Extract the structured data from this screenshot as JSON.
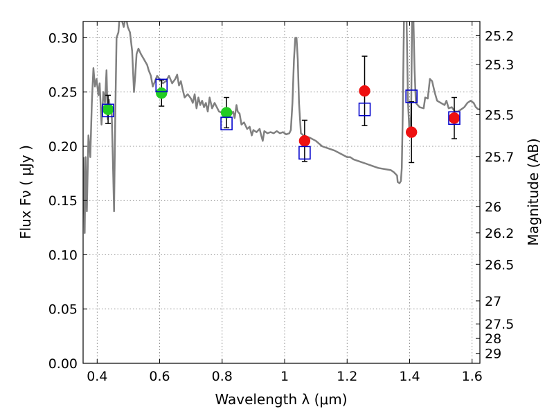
{
  "chart_data": {
    "type": "scatter",
    "title": "",
    "xlabel": "Wavelength  λ (μm)",
    "ylabel": "Flux  Fν  ( μJy )",
    "y2label": "Magnitude (AB)",
    "xlim": [
      0.355,
      1.625
    ],
    "ylim": [
      0.0,
      0.315
    ],
    "grid": true,
    "x_ticks": [
      0.4,
      0.6,
      0.8,
      1.0,
      1.2,
      1.4,
      1.6
    ],
    "x_tick_labels": [
      "0.4",
      "0.6",
      "0.8",
      "1",
      "1.2",
      "1.4",
      "1.6"
    ],
    "y_ticks": [
      0.0,
      0.05,
      0.1,
      0.15,
      0.2,
      0.25,
      0.3
    ],
    "y_tick_labels": [
      "0.00",
      "0.05",
      "0.10",
      "0.15",
      "0.20",
      "0.25",
      "0.30"
    ],
    "mag_ticks": [
      "25.2",
      "25.3",
      "25.5",
      "25.7",
      "26",
      "26.2",
      "26.5",
      "27",
      "27.5",
      "28",
      "29"
    ],
    "colors": {
      "sed": "#808080",
      "optical": "#22cc22",
      "nir": "#ee1111",
      "model": "#0000cc",
      "errorbar": "#000000"
    },
    "series": [
      {
        "marker": "circle",
        "color": "#22cc22",
        "points": [
          {
            "x": 0.435,
            "y": 0.234,
            "err": 0.013
          },
          {
            "x": 0.606,
            "y": 0.249,
            "err": 0.012
          },
          {
            "x": 0.814,
            "y": 0.231,
            "err": 0.014
          }
        ]
      },
      {
        "marker": "circle",
        "color": "#ee1111",
        "points": [
          {
            "x": 1.064,
            "y": 0.205,
            "err": 0.019
          },
          {
            "x": 1.256,
            "y": 0.251,
            "err": 0.032
          },
          {
            "x": 1.406,
            "y": 0.213,
            "err": 0.028
          },
          {
            "x": 1.543,
            "y": 0.226,
            "err": 0.019
          }
        ]
      },
      {
        "marker": "square-open",
        "color": "#0000cc",
        "points": [
          {
            "x": 0.435,
            "y": 0.233
          },
          {
            "x": 0.606,
            "y": 0.256
          },
          {
            "x": 0.814,
            "y": 0.221
          },
          {
            "x": 1.064,
            "y": 0.194
          },
          {
            "x": 1.256,
            "y": 0.234
          },
          {
            "x": 1.406,
            "y": 0.246
          },
          {
            "x": 1.543,
            "y": 0.226
          }
        ]
      }
    ],
    "sed_curve": [
      [
        0.356,
        0.19
      ],
      [
        0.36,
        0.12
      ],
      [
        0.363,
        0.19
      ],
      [
        0.367,
        0.14
      ],
      [
        0.372,
        0.21
      ],
      [
        0.378,
        0.19
      ],
      [
        0.383,
        0.24
      ],
      [
        0.388,
        0.272
      ],
      [
        0.393,
        0.255
      ],
      [
        0.398,
        0.262
      ],
      [
        0.404,
        0.247
      ],
      [
        0.408,
        0.258
      ],
      [
        0.414,
        0.22
      ],
      [
        0.42,
        0.25
      ],
      [
        0.425,
        0.24
      ],
      [
        0.43,
        0.27
      ],
      [
        0.434,
        0.225
      ],
      [
        0.438,
        0.243
      ],
      [
        0.442,
        0.233
      ],
      [
        0.446,
        0.236
      ],
      [
        0.45,
        0.19
      ],
      [
        0.454,
        0.14
      ],
      [
        0.458,
        0.23
      ],
      [
        0.462,
        0.3
      ],
      [
        0.468,
        0.305
      ],
      [
        0.472,
        0.32
      ],
      [
        0.48,
        0.315
      ],
      [
        0.485,
        0.31
      ],
      [
        0.492,
        0.32
      ],
      [
        0.498,
        0.31
      ],
      [
        0.505,
        0.305
      ],
      [
        0.512,
        0.288
      ],
      [
        0.518,
        0.25
      ],
      [
        0.522,
        0.265
      ],
      [
        0.526,
        0.285
      ],
      [
        0.532,
        0.29
      ],
      [
        0.54,
        0.285
      ],
      [
        0.55,
        0.28
      ],
      [
        0.56,
        0.275
      ],
      [
        0.565,
        0.27
      ],
      [
        0.572,
        0.265
      ],
      [
        0.578,
        0.255
      ],
      [
        0.585,
        0.26
      ],
      [
        0.592,
        0.265
      ],
      [
        0.6,
        0.262
      ],
      [
        0.61,
        0.258
      ],
      [
        0.62,
        0.26
      ],
      [
        0.63,
        0.265
      ],
      [
        0.64,
        0.258
      ],
      [
        0.65,
        0.262
      ],
      [
        0.656,
        0.266
      ],
      [
        0.662,
        0.256
      ],
      [
        0.668,
        0.26
      ],
      [
        0.674,
        0.252
      ],
      [
        0.68,
        0.245
      ],
      [
        0.69,
        0.248
      ],
      [
        0.7,
        0.244
      ],
      [
        0.706,
        0.24
      ],
      [
        0.712,
        0.248
      ],
      [
        0.718,
        0.235
      ],
      [
        0.724,
        0.245
      ],
      [
        0.73,
        0.238
      ],
      [
        0.736,
        0.242
      ],
      [
        0.742,
        0.236
      ],
      [
        0.748,
        0.24
      ],
      [
        0.754,
        0.232
      ],
      [
        0.76,
        0.245
      ],
      [
        0.768,
        0.235
      ],
      [
        0.776,
        0.24
      ],
      [
        0.79,
        0.232
      ],
      [
        0.81,
        0.23
      ],
      [
        0.825,
        0.228
      ],
      [
        0.835,
        0.232
      ],
      [
        0.84,
        0.226
      ],
      [
        0.846,
        0.238
      ],
      [
        0.85,
        0.232
      ],
      [
        0.856,
        0.23
      ],
      [
        0.862,
        0.22
      ],
      [
        0.87,
        0.222
      ],
      [
        0.88,
        0.216
      ],
      [
        0.888,
        0.218
      ],
      [
        0.895,
        0.21
      ],
      [
        0.9,
        0.215
      ],
      [
        0.91,
        0.213
      ],
      [
        0.92,
        0.216
      ],
      [
        0.925,
        0.21
      ],
      [
        0.93,
        0.205
      ],
      [
        0.935,
        0.214
      ],
      [
        0.945,
        0.212
      ],
      [
        0.955,
        0.213
      ],
      [
        0.965,
        0.212
      ],
      [
        0.975,
        0.214
      ],
      [
        0.985,
        0.212
      ],
      [
        0.995,
        0.213
      ],
      [
        1.005,
        0.211
      ],
      [
        1.015,
        0.212
      ],
      [
        1.02,
        0.215
      ],
      [
        1.025,
        0.24
      ],
      [
        1.03,
        0.28
      ],
      [
        1.034,
        0.3
      ],
      [
        1.038,
        0.3
      ],
      [
        1.042,
        0.28
      ],
      [
        1.046,
        0.24
      ],
      [
        1.052,
        0.212
      ],
      [
        1.06,
        0.21
      ],
      [
        1.08,
        0.208
      ],
      [
        1.1,
        0.205
      ],
      [
        1.12,
        0.2
      ],
      [
        1.14,
        0.198
      ],
      [
        1.16,
        0.196
      ],
      [
        1.18,
        0.193
      ],
      [
        1.2,
        0.19
      ],
      [
        1.21,
        0.19
      ],
      [
        1.22,
        0.188
      ],
      [
        1.24,
        0.186
      ],
      [
        1.26,
        0.184
      ],
      [
        1.28,
        0.182
      ],
      [
        1.3,
        0.18
      ],
      [
        1.32,
        0.179
      ],
      [
        1.34,
        0.178
      ],
      [
        1.35,
        0.176
      ],
      [
        1.36,
        0.173
      ],
      [
        1.362,
        0.167
      ],
      [
        1.368,
        0.166
      ],
      [
        1.372,
        0.168
      ],
      [
        1.375,
        0.18
      ],
      [
        1.378,
        0.23
      ],
      [
        1.382,
        0.32
      ],
      [
        1.39,
        0.32
      ],
      [
        1.395,
        0.24
      ],
      [
        1.4,
        0.21
      ],
      [
        1.405,
        0.23
      ],
      [
        1.408,
        0.32
      ],
      [
        1.412,
        0.32
      ],
      [
        1.416,
        0.27
      ],
      [
        1.42,
        0.24
      ],
      [
        1.432,
        0.236
      ],
      [
        1.445,
        0.235
      ],
      [
        1.45,
        0.245
      ],
      [
        1.458,
        0.244
      ],
      [
        1.465,
        0.262
      ],
      [
        1.472,
        0.26
      ],
      [
        1.48,
        0.25
      ],
      [
        1.488,
        0.242
      ],
      [
        1.5,
        0.24
      ],
      [
        1.512,
        0.238
      ],
      [
        1.518,
        0.242
      ],
      [
        1.525,
        0.235
      ],
      [
        1.535,
        0.236
      ],
      [
        1.545,
        0.232
      ],
      [
        1.555,
        0.232
      ],
      [
        1.565,
        0.234
      ],
      [
        1.575,
        0.236
      ],
      [
        1.585,
        0.24
      ],
      [
        1.595,
        0.242
      ],
      [
        1.605,
        0.24
      ],
      [
        1.612,
        0.236
      ],
      [
        1.62,
        0.234
      ],
      [
        1.625,
        0.234
      ]
    ]
  }
}
